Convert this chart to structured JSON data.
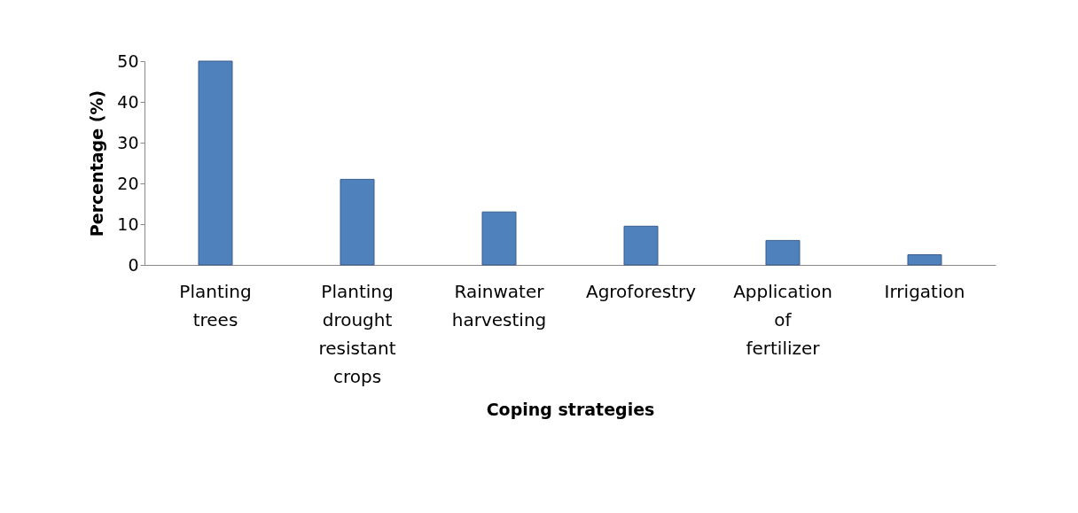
{
  "chart_data": {
    "type": "bar",
    "xlabel": "Coping strategies",
    "ylabel": "Percentage (%)",
    "categories": [
      "Planting trees",
      "Planting drought resistant crops",
      "Rainwater harvesting",
      "Agroforestry",
      "Application of fertilizer",
      "Irrigation"
    ],
    "values": [
      50,
      21,
      13,
      9.5,
      6,
      2.5
    ],
    "color": "#4f81bd",
    "ylim": [
      0,
      50
    ],
    "yticks": [
      0,
      10,
      20,
      30,
      40,
      50
    ],
    "grid": false
  }
}
